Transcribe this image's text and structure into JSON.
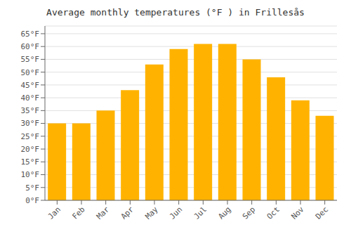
{
  "chart_data": {
    "type": "bar",
    "title": "Average monthly temperatures (°F ) in Frillesås",
    "categories": [
      "Jan",
      "Feb",
      "Mar",
      "Apr",
      "May",
      "Jun",
      "Jul",
      "Aug",
      "Sep",
      "Oct",
      "Nov",
      "Dec"
    ],
    "values": [
      30,
      30,
      35,
      43,
      53,
      59,
      61,
      61,
      55,
      48,
      39,
      33
    ],
    "color": "#FFB300",
    "ylim": [
      0,
      68
    ],
    "yticks": [
      {
        "value": 0,
        "label": "0°F"
      },
      {
        "value": 5,
        "label": "5°F"
      },
      {
        "value": 10,
        "label": "10°F"
      },
      {
        "value": 15,
        "label": "15°F"
      },
      {
        "value": 20,
        "label": "20°F"
      },
      {
        "value": 25,
        "label": "25°F"
      },
      {
        "value": 30,
        "label": "30°F"
      },
      {
        "value": 35,
        "label": "35°F"
      },
      {
        "value": 40,
        "label": "40°F"
      },
      {
        "value": 45,
        "label": "45°F"
      },
      {
        "value": 50,
        "label": "50°F"
      },
      {
        "value": 55,
        "label": "55°F"
      },
      {
        "value": 60,
        "label": "60°F"
      },
      {
        "value": 65,
        "label": "65°F"
      }
    ],
    "grid": true
  }
}
